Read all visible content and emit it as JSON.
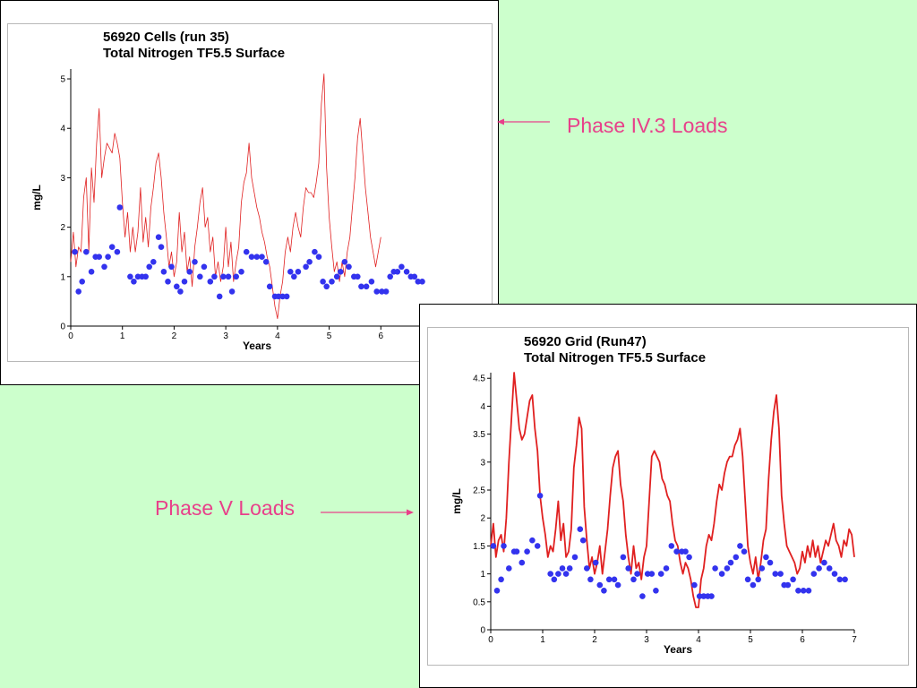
{
  "annotations": {
    "phase_iv": "Phase IV.3 Loads",
    "phase_v": "Phase V Loads"
  },
  "colors": {
    "background": "#ccffcc",
    "model_line": "#e02020",
    "observed_points": "#3333ee",
    "annotation": "#e8408a"
  },
  "chart_data": [
    {
      "type": "line",
      "title": "56920 Cells (run 35)",
      "subtitle": "Total Nitrogen TF5.5 Surface",
      "xlabel": "Years",
      "ylabel": "mg/L",
      "xlim": [
        0,
        7
      ],
      "ylim": [
        0,
        5.2
      ],
      "xticks": [
        0,
        1,
        2,
        3,
        4,
        5,
        6
      ],
      "yticks": [
        0,
        1,
        2,
        3,
        4,
        5
      ],
      "grid": false,
      "series": [
        {
          "kind": "line",
          "x": [
            0,
            0.05,
            0.1,
            0.15,
            0.2,
            0.25,
            0.3,
            0.35,
            0.4,
            0.45,
            0.5,
            0.55,
            0.6,
            0.65,
            0.7,
            0.75,
            0.8,
            0.85,
            0.9,
            0.95,
            1.0,
            1.05,
            1.1,
            1.15,
            1.2,
            1.25,
            1.3,
            1.35,
            1.4,
            1.45,
            1.5,
            1.55,
            1.6,
            1.65,
            1.7,
            1.75,
            1.8,
            1.85,
            1.9,
            1.95,
            2.0,
            2.05,
            2.1,
            2.15,
            2.2,
            2.25,
            2.3,
            2.35,
            2.4,
            2.45,
            2.5,
            2.55,
            2.6,
            2.65,
            2.7,
            2.75,
            2.8,
            2.85,
            2.9,
            2.95,
            3.0,
            3.05,
            3.1,
            3.15,
            3.2,
            3.25,
            3.3,
            3.35,
            3.4,
            3.45,
            3.5,
            3.55,
            3.6,
            3.65,
            3.7,
            3.75,
            3.8,
            3.85,
            3.9,
            3.95,
            4.0,
            4.05,
            4.1,
            4.15,
            4.2,
            4.25,
            4.3,
            4.35,
            4.4,
            4.45,
            4.5,
            4.55,
            4.6,
            4.65,
            4.7,
            4.75,
            4.8,
            4.85,
            4.9,
            4.95,
            5.0,
            5.05,
            5.1,
            5.15,
            5.2,
            5.25,
            5.3,
            5.35,
            5.4,
            5.45,
            5.5,
            5.55,
            5.6,
            5.65,
            5.7,
            5.75,
            5.8,
            5.85,
            5.9,
            5.95,
            6.0
          ],
          "y": [
            1.3,
            1.9,
            1.2,
            1.6,
            1.5,
            2.6,
            3.0,
            1.5,
            3.2,
            2.5,
            3.7,
            4.4,
            3.0,
            3.4,
            3.7,
            3.6,
            3.5,
            3.9,
            3.7,
            3.4,
            2.5,
            1.8,
            2.3,
            1.5,
            2.0,
            1.5,
            1.9,
            2.8,
            1.7,
            2.2,
            1.6,
            2.4,
            2.8,
            3.3,
            3.5,
            3.0,
            2.3,
            1.8,
            1.2,
            1.5,
            1.0,
            1.3,
            2.3,
            1.5,
            1.9,
            1.1,
            1.4,
            0.8,
            1.6,
            2.0,
            2.5,
            2.8,
            2.0,
            2.2,
            1.5,
            1.8,
            1.0,
            1.3,
            0.9,
            1.2,
            2.0,
            1.2,
            1.7,
            0.9,
            1.3,
            1.6,
            2.5,
            2.9,
            3.1,
            3.7,
            3.0,
            2.7,
            2.4,
            2.2,
            1.9,
            1.7,
            1.4,
            1.2,
            0.8,
            0.4,
            0.15,
            0.6,
            0.9,
            1.5,
            1.8,
            1.5,
            2.0,
            2.3,
            2.0,
            1.8,
            2.4,
            2.8,
            2.7,
            2.7,
            2.6,
            2.9,
            3.3,
            4.5,
            5.1,
            3.2,
            2.2,
            1.6,
            1.1,
            1.3,
            0.9,
            1.3,
            1.0,
            1.5,
            1.8,
            2.4,
            3.0,
            3.8,
            4.2,
            3.5,
            2.8,
            2.3,
            1.8,
            1.5,
            1.2,
            1.5,
            1.8
          ]
        },
        {
          "kind": "scatter",
          "x": [
            0.08,
            0.15,
            0.22,
            0.3,
            0.4,
            0.48,
            0.55,
            0.65,
            0.72,
            0.8,
            0.9,
            0.95,
            1.15,
            1.22,
            1.3,
            1.38,
            1.45,
            1.52,
            1.6,
            1.7,
            1.75,
            1.8,
            1.88,
            1.95,
            2.05,
            2.12,
            2.2,
            2.3,
            2.4,
            2.5,
            2.58,
            2.7,
            2.78,
            2.88,
            2.95,
            3.05,
            3.12,
            3.2,
            3.3,
            3.4,
            3.5,
            3.6,
            3.7,
            3.78,
            3.85,
            3.95,
            4.02,
            4.1,
            4.18,
            4.25,
            4.32,
            4.4,
            4.55,
            4.62,
            4.72,
            4.8,
            4.88,
            4.95,
            5.05,
            5.15,
            5.22,
            5.3,
            5.38,
            5.48,
            5.55,
            5.62,
            5.72,
            5.82,
            5.92,
            6.02,
            6.1,
            6.18,
            6.25,
            6.32,
            6.4,
            6.5,
            6.58,
            6.65,
            6.72,
            6.8
          ],
          "y": [
            1.5,
            0.7,
            0.9,
            1.5,
            1.1,
            1.4,
            1.4,
            1.2,
            1.4,
            1.6,
            1.5,
            2.4,
            1.0,
            0.9,
            1.0,
            1.0,
            1.0,
            1.2,
            1.3,
            1.8,
            1.6,
            1.1,
            0.9,
            1.2,
            0.8,
            0.7,
            0.9,
            1.1,
            1.3,
            1.0,
            1.2,
            0.9,
            1.0,
            0.6,
            1.0,
            1.0,
            0.7,
            1.0,
            1.1,
            1.5,
            1.4,
            1.4,
            1.4,
            1.3,
            0.8,
            0.6,
            0.6,
            0.6,
            0.6,
            1.1,
            1.0,
            1.1,
            1.2,
            1.3,
            1.5,
            1.4,
            0.9,
            0.8,
            0.9,
            1.0,
            1.1,
            1.3,
            1.2,
            1.0,
            1.0,
            0.8,
            0.8,
            0.9,
            0.7,
            0.7,
            0.7,
            1.0,
            1.1,
            1.1,
            1.2,
            1.1,
            1.0,
            1.0,
            0.9,
            0.9
          ]
        }
      ]
    },
    {
      "type": "line",
      "title": "56920 Grid (Run47)",
      "subtitle": "Total Nitrogen TF5.5 Surface",
      "xlabel": "Years",
      "ylabel": "mg/L",
      "xlim": [
        0,
        7
      ],
      "ylim": [
        0,
        4.6
      ],
      "xticks": [
        0,
        1,
        2,
        3,
        4,
        5,
        6,
        7
      ],
      "yticks": [
        0,
        0.5,
        1,
        1.5,
        2,
        2.5,
        3,
        3.5,
        4,
        4.5
      ],
      "grid": false,
      "series": [
        {
          "kind": "line",
          "x": [
            0,
            0.05,
            0.1,
            0.15,
            0.2,
            0.25,
            0.3,
            0.35,
            0.4,
            0.45,
            0.5,
            0.55,
            0.6,
            0.65,
            0.7,
            0.75,
            0.8,
            0.85,
            0.9,
            0.95,
            1.0,
            1.05,
            1.1,
            1.15,
            1.2,
            1.25,
            1.3,
            1.35,
            1.4,
            1.45,
            1.5,
            1.55,
            1.6,
            1.65,
            1.7,
            1.75,
            1.8,
            1.85,
            1.9,
            1.95,
            2.0,
            2.05,
            2.1,
            2.15,
            2.2,
            2.25,
            2.3,
            2.35,
            2.4,
            2.45,
            2.5,
            2.55,
            2.6,
            2.65,
            2.7,
            2.75,
            2.8,
            2.85,
            2.9,
            2.95,
            3.0,
            3.05,
            3.1,
            3.15,
            3.2,
            3.25,
            3.3,
            3.35,
            3.4,
            3.45,
            3.5,
            3.55,
            3.6,
            3.65,
            3.7,
            3.75,
            3.8,
            3.85,
            3.9,
            3.95,
            4.0,
            4.05,
            4.1,
            4.15,
            4.2,
            4.25,
            4.3,
            4.35,
            4.4,
            4.45,
            4.5,
            4.55,
            4.6,
            4.65,
            4.7,
            4.75,
            4.8,
            4.85,
            4.9,
            4.95,
            5.0,
            5.05,
            5.1,
            5.15,
            5.2,
            5.25,
            5.3,
            5.35,
            5.4,
            5.45,
            5.5,
            5.55,
            5.6,
            5.65,
            5.7,
            5.75,
            5.8,
            5.85,
            5.9,
            5.95,
            6.0,
            6.05,
            6.1,
            6.15,
            6.2,
            6.25,
            6.3,
            6.35,
            6.4,
            6.45,
            6.5,
            6.55,
            6.6,
            6.65,
            6.7,
            6.75,
            6.8,
            6.85,
            6.9,
            6.95,
            7.0
          ],
          "y": [
            1.5,
            1.9,
            1.3,
            1.6,
            1.7,
            1.4,
            2.0,
            3.0,
            3.8,
            4.6,
            4.1,
            3.6,
            3.4,
            3.5,
            3.8,
            4.1,
            4.2,
            3.6,
            3.2,
            2.4,
            2.0,
            1.7,
            1.3,
            1.5,
            1.4,
            1.8,
            2.3,
            1.6,
            1.9,
            1.3,
            1.4,
            1.8,
            2.9,
            3.3,
            3.8,
            3.6,
            2.2,
            1.6,
            1.1,
            1.3,
            1.0,
            1.2,
            1.5,
            1.0,
            1.4,
            1.8,
            2.4,
            2.9,
            3.1,
            3.2,
            2.6,
            2.3,
            1.7,
            1.3,
            1.0,
            1.5,
            1.1,
            1.2,
            0.9,
            1.3,
            1.5,
            2.3,
            3.1,
            3.2,
            3.1,
            3.0,
            2.7,
            2.6,
            2.4,
            2.3,
            1.9,
            1.6,
            1.5,
            1.2,
            1.0,
            1.2,
            1.1,
            0.9,
            0.6,
            0.4,
            0.4,
            0.9,
            1.1,
            1.5,
            1.7,
            1.6,
            1.9,
            2.3,
            2.6,
            2.5,
            2.8,
            3.0,
            3.1,
            3.1,
            3.3,
            3.4,
            3.6,
            3.1,
            2.3,
            1.5,
            1.2,
            1.0,
            1.3,
            0.9,
            1.2,
            1.6,
            1.8,
            2.7,
            3.4,
            3.9,
            4.2,
            3.6,
            2.4,
            1.9,
            1.5,
            1.4,
            1.3,
            1.2,
            1.0,
            1.1,
            1.4,
            1.2,
            1.5,
            1.3,
            1.6,
            1.3,
            1.5,
            1.2,
            1.4,
            1.6,
            1.5,
            1.7,
            1.9,
            1.6,
            1.5,
            1.3,
            1.6,
            1.5,
            1.8,
            1.7,
            1.3
          ]
        },
        {
          "kind": "scatter",
          "x": [
            0.05,
            0.12,
            0.2,
            0.25,
            0.35,
            0.45,
            0.5,
            0.6,
            0.7,
            0.8,
            0.9,
            0.95,
            1.15,
            1.22,
            1.3,
            1.38,
            1.45,
            1.52,
            1.62,
            1.72,
            1.78,
            1.85,
            1.92,
            2.02,
            2.1,
            2.18,
            2.28,
            2.38,
            2.45,
            2.55,
            2.65,
            2.75,
            2.82,
            2.92,
            3.02,
            3.1,
            3.18,
            3.28,
            3.38,
            3.48,
            3.58,
            3.68,
            3.75,
            3.82,
            3.92,
            4.02,
            4.1,
            4.18,
            4.25,
            4.32,
            4.45,
            4.55,
            4.62,
            4.72,
            4.8,
            4.88,
            4.95,
            5.05,
            5.15,
            5.22,
            5.3,
            5.38,
            5.48,
            5.58,
            5.65,
            5.72,
            5.82,
            5.92,
            6.02,
            6.12,
            6.22,
            6.32,
            6.42,
            6.52,
            6.62,
            6.72,
            6.82
          ],
          "y": [
            1.5,
            0.7,
            0.9,
            1.5,
            1.1,
            1.4,
            1.4,
            1.2,
            1.4,
            1.6,
            1.5,
            2.4,
            1.0,
            0.9,
            1.0,
            1.1,
            1.0,
            1.1,
            1.3,
            1.8,
            1.6,
            1.1,
            0.9,
            1.2,
            0.8,
            0.7,
            0.9,
            0.9,
            0.8,
            1.3,
            1.1,
            0.9,
            1.0,
            0.6,
            1.0,
            1.0,
            0.7,
            1.0,
            1.1,
            1.5,
            1.4,
            1.4,
            1.4,
            1.3,
            0.8,
            0.6,
            0.6,
            0.6,
            0.6,
            1.1,
            1.0,
            1.1,
            1.2,
            1.3,
            1.5,
            1.4,
            0.9,
            0.8,
            0.9,
            1.1,
            1.3,
            1.2,
            1.0,
            1.0,
            0.8,
            0.8,
            0.9,
            0.7,
            0.7,
            0.7,
            1.0,
            1.1,
            1.2,
            1.1,
            1.0,
            0.9,
            0.9
          ]
        }
      ]
    }
  ]
}
